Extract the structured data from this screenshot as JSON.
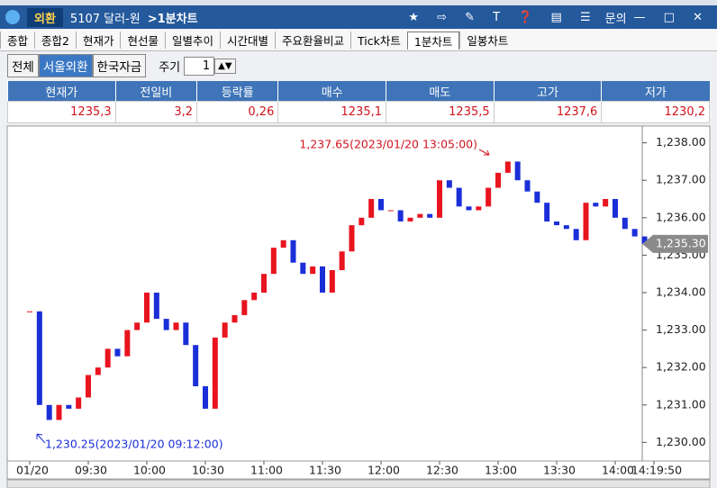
{
  "header": {
    "market": "외환",
    "code": "5107 달러-원",
    "screen": ">1분차트",
    "help": "문의"
  },
  "tabs": [
    "종합",
    "종합2",
    "현재가",
    "현선물",
    "일별추이",
    "시간대별",
    "주요환율비교",
    "Tick차트",
    "1분차트",
    "일봉차트"
  ],
  "toolbar": {
    "buttons": [
      "전체",
      "서울외환",
      "한국자금"
    ],
    "period_label": "주기",
    "period_value": "1"
  },
  "table": {
    "headers": [
      "현재가",
      "전일비",
      "등락률",
      "매수",
      "매도",
      "고가",
      "저가"
    ],
    "rows": [
      [
        "1235,3",
        "3,2",
        "0,26",
        "1235,1",
        "1235,5",
        "1237,6",
        "1230,2"
      ]
    ]
  },
  "chart_data": {
    "type": "candlestick",
    "x": [
      "09:00",
      "09:05",
      "09:10",
      "09:15",
      "09:20",
      "09:25",
      "09:30",
      "09:35",
      "09:40",
      "09:45",
      "09:50",
      "09:55",
      "10:00",
      "10:05",
      "10:10",
      "10:15",
      "10:20",
      "10:25",
      "10:30",
      "10:35",
      "10:40",
      "10:45",
      "10:50",
      "10:55",
      "11:00",
      "11:05",
      "11:10",
      "11:15",
      "11:20",
      "11:25",
      "11:30",
      "11:35",
      "11:40",
      "11:45",
      "11:50",
      "11:55",
      "12:00",
      "12:05",
      "12:10",
      "12:15",
      "12:20",
      "12:25",
      "12:30",
      "12:35",
      "12:40",
      "12:45",
      "12:50",
      "12:55",
      "13:00",
      "13:05",
      "13:10",
      "13:15",
      "13:20",
      "13:25",
      "13:30",
      "13:35",
      "13:40",
      "13:45",
      "13:50",
      "13:55",
      "14:00",
      "14:05",
      "14:10",
      "14:15"
    ],
    "close": [
      1233.5,
      1231.0,
      1230.6,
      1231.0,
      1230.9,
      1231.2,
      1231.8,
      1232.0,
      1232.5,
      1232.3,
      1233.0,
      1233.2,
      1234.0,
      1233.3,
      1233.0,
      1233.2,
      1232.6,
      1231.5,
      1230.9,
      1232.8,
      1233.2,
      1233.4,
      1233.8,
      1234.0,
      1234.5,
      1235.2,
      1235.4,
      1234.8,
      1234.5,
      1234.7,
      1234.0,
      1234.6,
      1235.1,
      1235.8,
      1236.0,
      1236.5,
      1236.2,
      1236.2,
      1235.9,
      1236.0,
      1236.1,
      1236.0,
      1237.0,
      1236.8,
      1236.3,
      1236.2,
      1236.3,
      1236.8,
      1237.2,
      1237.5,
      1237.0,
      1236.7,
      1236.4,
      1235.9,
      1235.8,
      1235.7,
      1235.4,
      1236.4,
      1236.3,
      1236.5,
      1236.0,
      1235.7,
      1235.5,
      1235.3
    ],
    "up_color": "#e8141e",
    "down_color": "#1a2fd8",
    "ylim": [
      1229.6,
      1238.4
    ],
    "yticks": [
      {
        "value": 1230,
        "label": "1,230.00"
      },
      {
        "value": 1231,
        "label": "1,231.00"
      },
      {
        "value": 1232,
        "label": "1,232.00"
      },
      {
        "value": 1233,
        "label": "1,233.00"
      },
      {
        "value": 1234,
        "label": "1,234.00"
      },
      {
        "value": 1235,
        "label": "1,235.00"
      },
      {
        "value": 1236,
        "label": "1,236.00"
      },
      {
        "value": 1237,
        "label": "1,237.00"
      },
      {
        "value": 1238,
        "label": "1,238.00"
      }
    ],
    "xticks": [
      {
        "value": "09:00",
        "label": "01/20"
      },
      "09:30",
      "10:00",
      "10:30",
      "11:00",
      "11:30",
      "12:00",
      "12:30",
      "13:00",
      "13:30",
      "14:00",
      "14:19:50"
    ],
    "current_price": {
      "value": 1235.3,
      "label": "1,235.30"
    },
    "annotations": [
      "1,237.65(2023/01/20 13:05:00)",
      "1,230.25(2023/01/20 09:12:00)"
    ]
  }
}
